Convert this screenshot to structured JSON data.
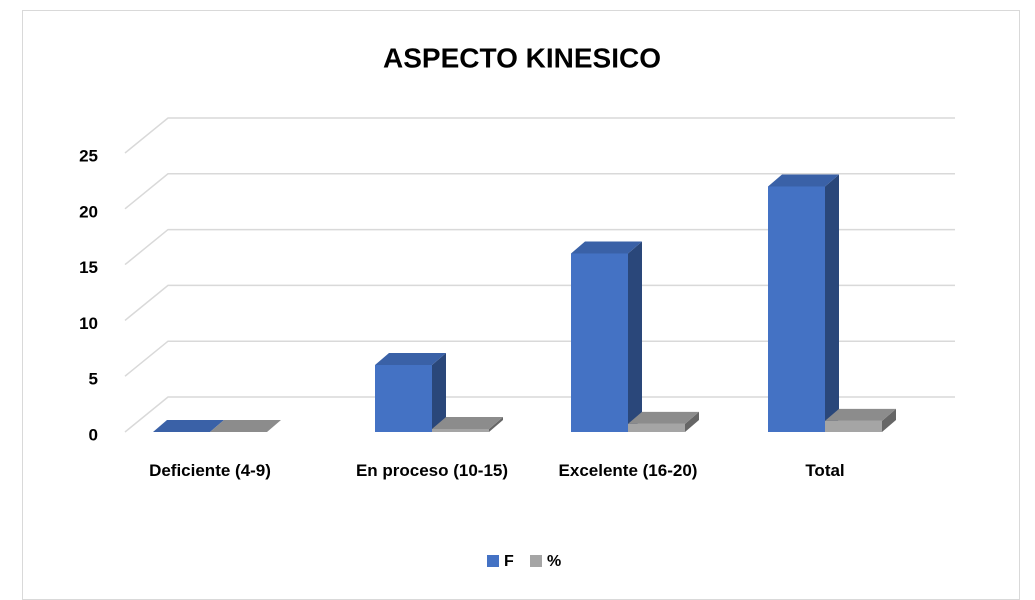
{
  "chart_data": {
    "type": "bar3d",
    "title": "ASPECTO KINESICO",
    "categories": [
      "Deficiente      (4-9)",
      "En proceso (10-15)",
      "Excelente (16-20)",
      "Total"
    ],
    "series": [
      {
        "name": "F",
        "color": "#4472c4",
        "values": [
          0,
          6,
          16,
          22
        ]
      },
      {
        "name": "%",
        "color": "#a5a5a5",
        "values": [
          0,
          0.27,
          0.73,
          1
        ]
      }
    ],
    "ylim": [
      0,
      25
    ],
    "yticks": [
      0,
      5,
      10,
      15,
      20,
      25
    ],
    "grid": true,
    "legend": "bottom"
  }
}
